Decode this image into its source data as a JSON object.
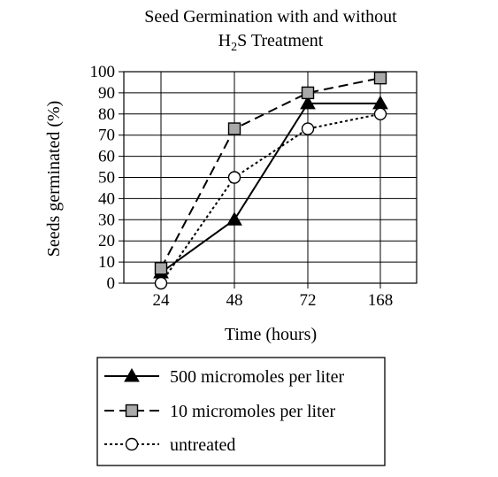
{
  "chart_data": {
    "type": "line",
    "title_line1": "Seed Germination with and without",
    "title_line2_main": "H",
    "title_line2_sub": "2",
    "title_line2_rest": "S Treatment",
    "xlabel": "Time (hours)",
    "ylabel": "Seeds germinated (%)",
    "categories": [
      "24",
      "48",
      "72",
      "168"
    ],
    "ylim": [
      0,
      100
    ],
    "yticks": [
      "0",
      "10",
      "20",
      "30",
      "40",
      "50",
      "60",
      "70",
      "80",
      "90",
      "100"
    ],
    "grid": "horizontal",
    "legend_placement": "bottom",
    "series": [
      {
        "name": "500 micromoles per liter",
        "values": [
          5,
          30,
          85,
          85
        ],
        "marker": "triangle",
        "line_style": "solid",
        "color": "#000000"
      },
      {
        "name": "10 micromoles per liter",
        "values": [
          7,
          73,
          90,
          97
        ],
        "marker": "square",
        "line_style": "dashed",
        "color": "#000000",
        "marker_fill": "#a9a9a9"
      },
      {
        "name": "untreated",
        "values": [
          0,
          50,
          73,
          80
        ],
        "marker": "circle",
        "line_style": "dotted",
        "color": "#000000",
        "marker_fill": "#ffffff"
      }
    ]
  }
}
